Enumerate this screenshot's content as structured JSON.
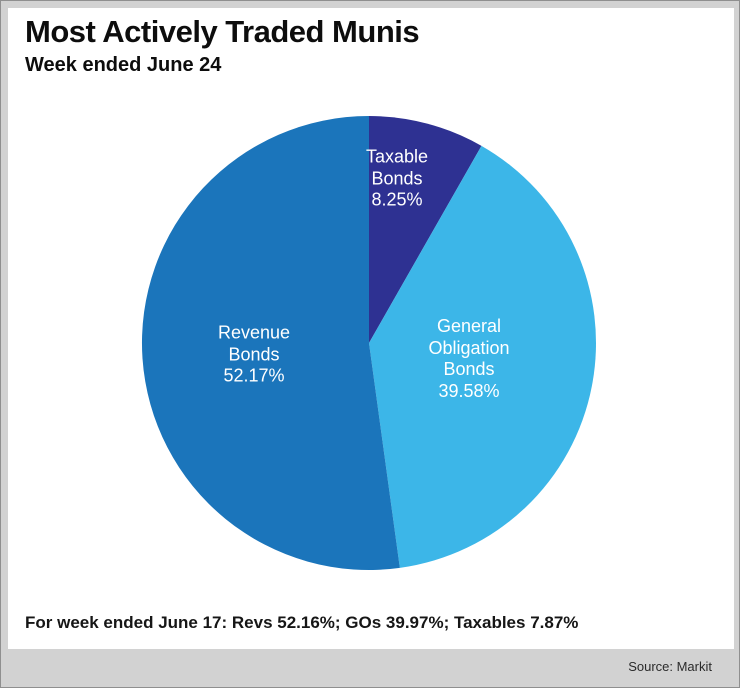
{
  "chart_data": {
    "type": "pie",
    "title": "Most Actively Traded Munis",
    "subtitle": "Week ended June 24",
    "start_angle_deg": -90,
    "direction": "clockwise",
    "slices": [
      {
        "name": "Taxable Bonds",
        "value": 8.25,
        "color": "#2e3192",
        "label_text": "Taxable\nBonds\n8.25%"
      },
      {
        "name": "General Obligation Bonds",
        "value": 39.58,
        "color": "#3cb6e8",
        "label_text": "General\nObligation\nBonds\n39.58%"
      },
      {
        "name": "Revenue Bonds",
        "value": 52.17,
        "color": "#1b75bb",
        "label_text": "Revenue\nBonds\n52.17%"
      }
    ]
  },
  "footnote": {
    "text": "For week ended June 17: Revs 52.16%; GOs 39.97%; Taxables 7.87%"
  },
  "source": {
    "text": "Source: Markit"
  }
}
